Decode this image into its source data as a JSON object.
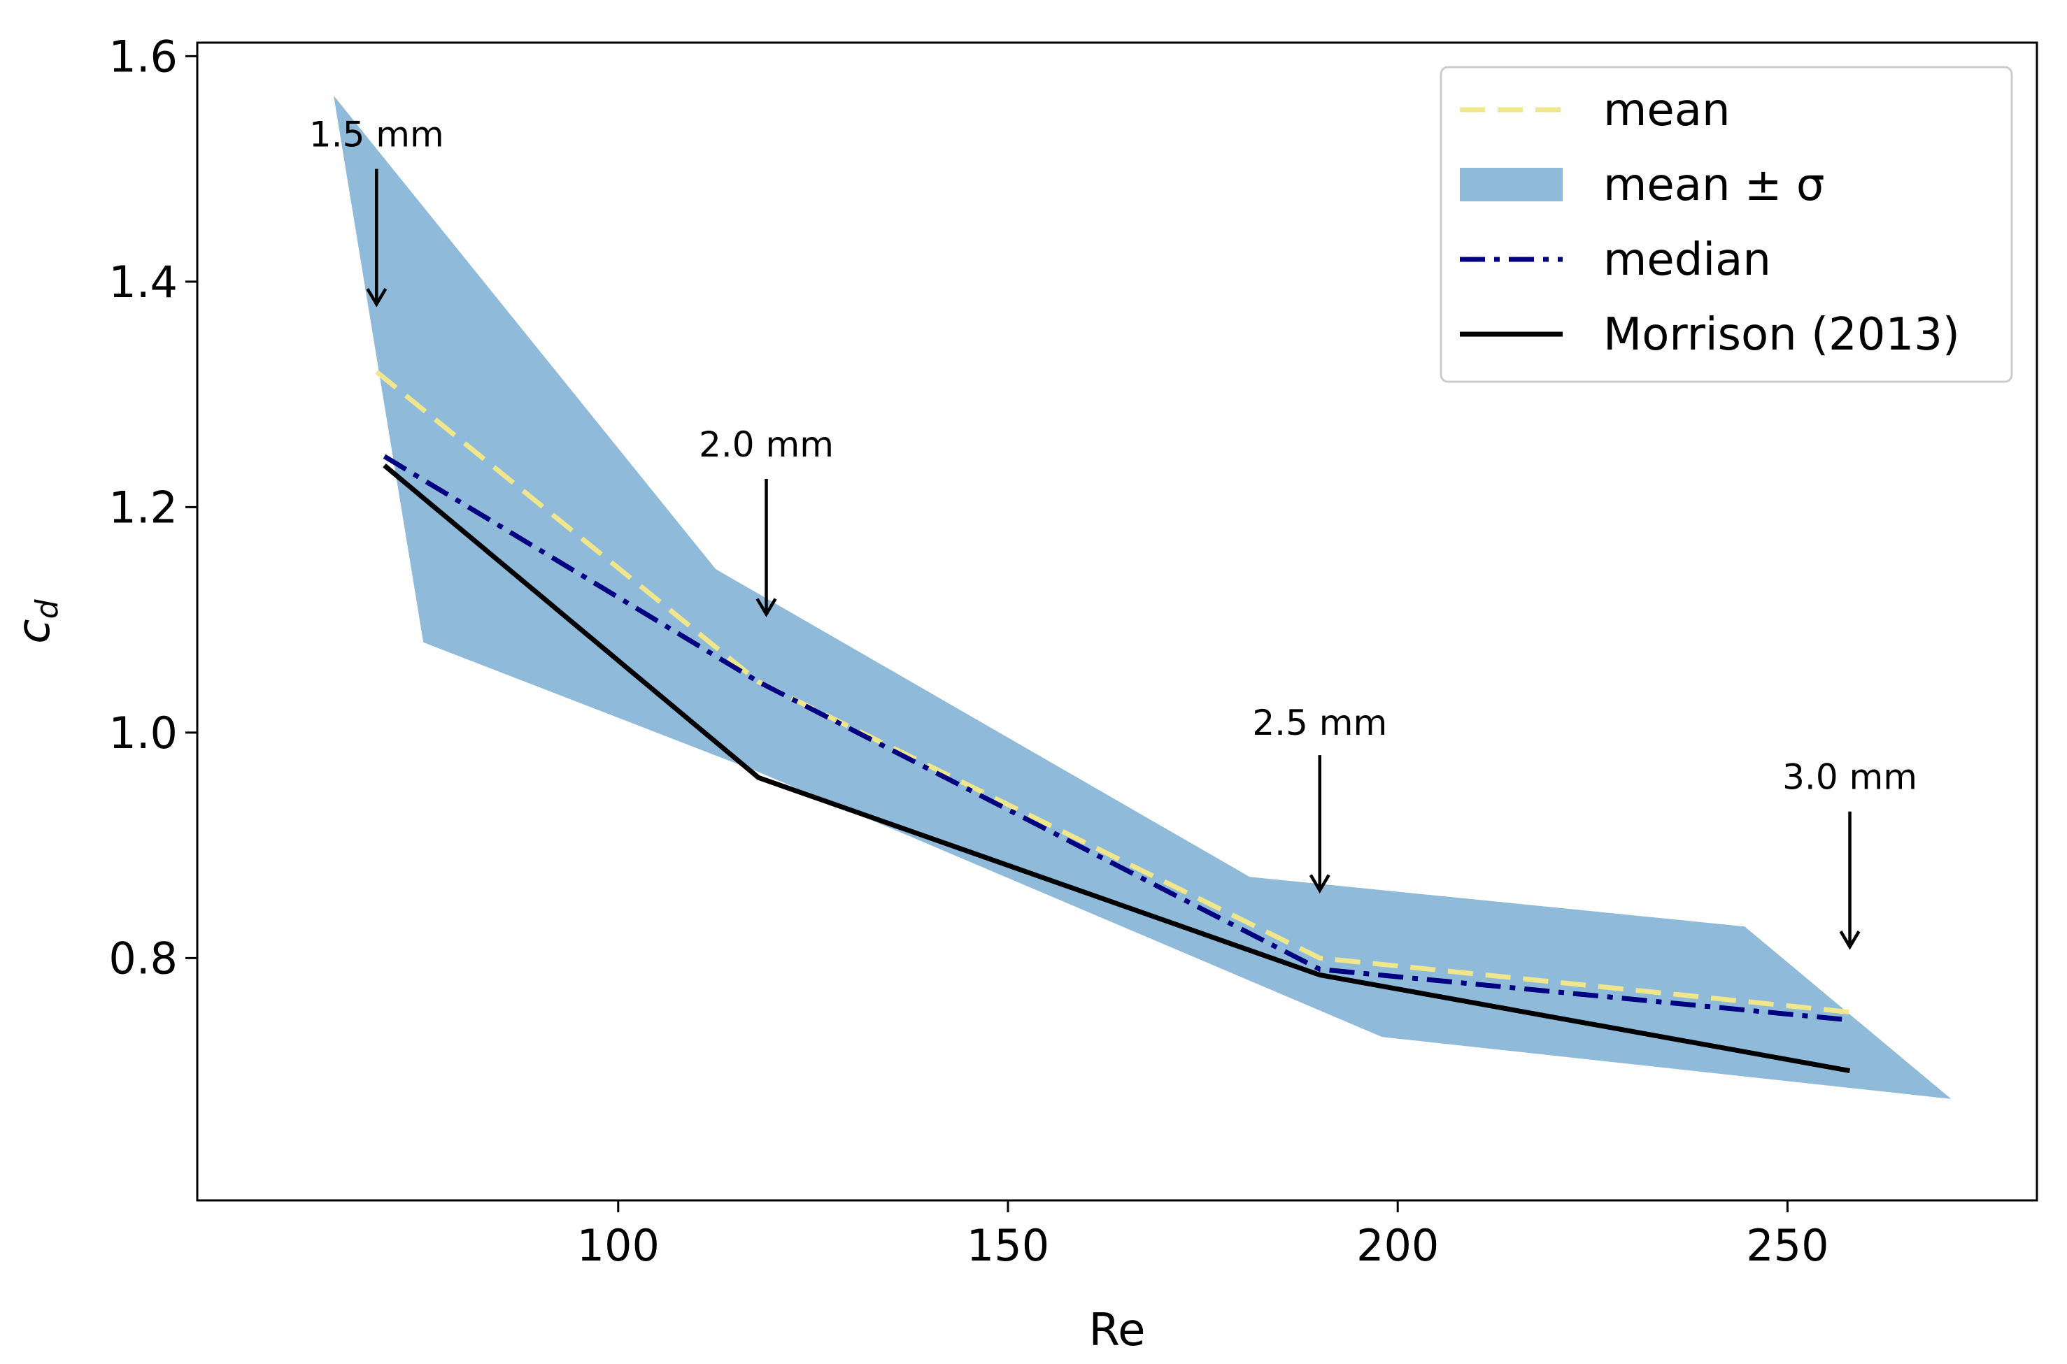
{
  "chart_data": {
    "type": "line",
    "title": "",
    "xlabel": "Re",
    "ylabel": "c_d",
    "ylabel_main": "c",
    "ylabel_sub": "d",
    "xlim": [
      46,
      282
    ],
    "ylim": [
      0.585,
      1.612
    ],
    "xticks": [
      100,
      150,
      200,
      250
    ],
    "xtick_labels": [
      "100",
      "150",
      "200",
      "250"
    ],
    "yticks": [
      0.8,
      1.0,
      1.2,
      1.4,
      1.6
    ],
    "ytick_labels": [
      "0.8",
      "1.0",
      "1.2",
      "1.4",
      "1.6"
    ],
    "grid": false,
    "legend_position": "top-right",
    "band": {
      "name": "mean ± σ",
      "color": "#8fbada",
      "upper": [
        [
          63.5,
          1.565
        ],
        [
          112.5,
          1.145
        ],
        [
          181,
          0.872
        ],
        [
          244.5,
          0.828
        ],
        [
          271,
          0.675
        ]
      ],
      "lower": [
        [
          75,
          1.08
        ],
        [
          118,
          0.965
        ],
        [
          198,
          0.73
        ],
        [
          271,
          0.675
        ]
      ],
      "left_edge": [
        [
          63.5,
          1.565
        ],
        [
          75,
          1.08
        ]
      ]
    },
    "series": [
      {
        "name": "mean",
        "color": "#f0e68c",
        "dash": "dashed",
        "x": [
          69,
          118,
          190,
          258
        ],
        "y": [
          1.32,
          1.045,
          0.8,
          0.752
        ]
      },
      {
        "name": "median",
        "color": "#000080",
        "dash": "dashdot",
        "x": [
          70,
          118,
          190,
          258
        ],
        "y": [
          1.245,
          1.045,
          0.79,
          0.745
        ]
      },
      {
        "name": "Morrison (2013)",
        "color": "#000000",
        "dash": "solid",
        "x": [
          70,
          118,
          190,
          258
        ],
        "y": [
          1.237,
          0.96,
          0.785,
          0.7
        ]
      }
    ],
    "annotations": [
      {
        "text": "1.5 mm",
        "x": 69,
        "y_text": 1.52,
        "y_arrow_start": 1.5,
        "y_arrow_end": 1.38
      },
      {
        "text": "2.0 mm",
        "x": 119,
        "y_text": 1.245,
        "y_arrow_start": 1.225,
        "y_arrow_end": 1.105
      },
      {
        "text": "2.5 mm",
        "x": 190,
        "y_text": 0.998,
        "y_arrow_start": 0.98,
        "y_arrow_end": 0.86
      },
      {
        "text": "3.0 mm",
        "x": 258,
        "y_text": 0.95,
        "y_arrow_start": 0.93,
        "y_arrow_end": 0.81
      }
    ],
    "legend": [
      {
        "label": "mean",
        "kind": "line",
        "ref": "mean"
      },
      {
        "label": "mean ± σ",
        "kind": "patch",
        "ref": "band"
      },
      {
        "label": "median",
        "kind": "line",
        "ref": "median"
      },
      {
        "label": "Morrison (2013)",
        "kind": "line",
        "ref": "Morrison (2013)"
      }
    ]
  }
}
